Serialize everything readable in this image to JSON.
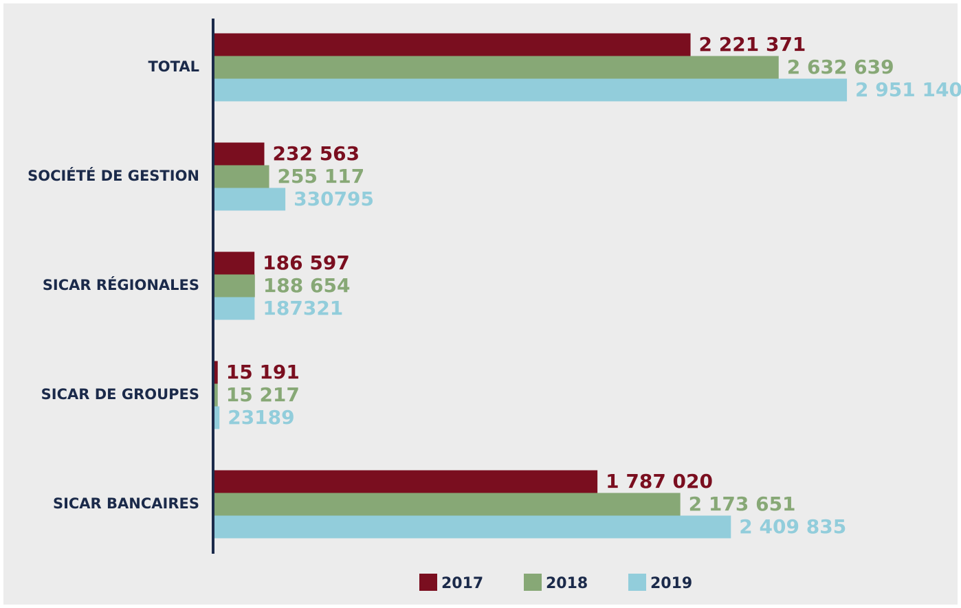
{
  "chart_data": {
    "type": "bar",
    "orientation": "horizontal",
    "categories": [
      "TOTAL",
      "SOCIÉTÉ DE GESTION",
      "SICAR RÉGIONALES",
      "SICAR DE GROUPES",
      "SICAR BANCAIRES"
    ],
    "series": [
      {
        "name": "2017",
        "color": "#7a0e1f",
        "values": [
          2221371,
          232563,
          186597,
          15191,
          1787020
        ],
        "value_labels": [
          "2 221 371",
          "232 563",
          "186 597",
          "15 191",
          "1 787 020"
        ]
      },
      {
        "name": "2018",
        "color": "#87a876",
        "values": [
          2632639,
          255117,
          188654,
          15217,
          2173651
        ],
        "value_labels": [
          "2 632 639",
          "255 117",
          "188 654",
          "15 217",
          "2 173 651"
        ]
      },
      {
        "name": "2019",
        "color": "#92cddb",
        "values": [
          2951140,
          330795,
          187321,
          23189,
          2409835
        ],
        "value_labels": [
          "2 951 140",
          "330795",
          "187321",
          "23189",
          "2 409 835"
        ]
      }
    ],
    "xlim": [
      0,
      3400000
    ],
    "legend": "bottom"
  }
}
